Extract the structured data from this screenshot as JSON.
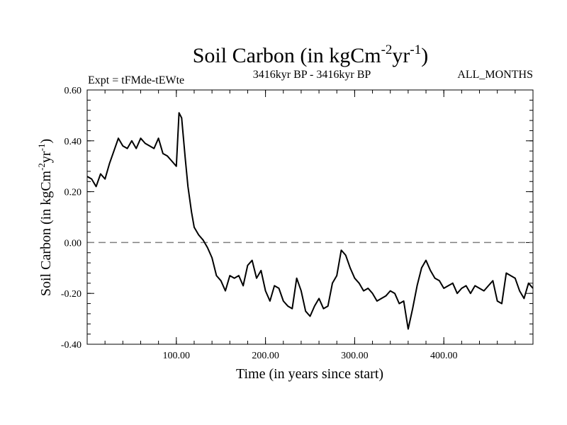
{
  "chart_data": {
    "type": "line",
    "title": "Soil Carbon (in kgCm",
    "title_sup1": "-2",
    "title_mid": "yr",
    "title_sup2": "-1",
    "title_end": ")",
    "subtitle_left": "Expt = tFMde-tEWte",
    "subtitle_center": "3416kyr BP - 3416kyr BP",
    "subtitle_right": "ALL_MONTHS",
    "xlabel": "Time (in years since start)",
    "ylabel": "Soil Carbon (in kgCm",
    "ylabel_sup1": "-2",
    "ylabel_mid": "yr",
    "ylabel_sup2": "-1",
    "ylabel_end": ")",
    "xlim": [
      0,
      500
    ],
    "ylim": [
      -0.4,
      0.6
    ],
    "xticks": [
      {
        "value": 100,
        "label": "100.00"
      },
      {
        "value": 200,
        "label": "200.00"
      },
      {
        "value": 300,
        "label": "300.00"
      },
      {
        "value": 400,
        "label": "400.00"
      }
    ],
    "yticks": [
      {
        "value": 0.6,
        "label": "0.60"
      },
      {
        "value": 0.4,
        "label": "0.40"
      },
      {
        "value": 0.2,
        "label": "0.20"
      },
      {
        "value": 0.0,
        "label": "0.00"
      },
      {
        "value": -0.2,
        "label": "-0.20"
      },
      {
        "value": -0.4,
        "label": "-0.40"
      }
    ],
    "reference_line": {
      "y": 0.0,
      "style": "dashed",
      "color": "#808080"
    },
    "series": [
      {
        "name": "Soil Carbon",
        "color": "#000000",
        "x": [
          0,
          5,
          10,
          15,
          20,
          25,
          30,
          35,
          40,
          45,
          50,
          55,
          60,
          65,
          70,
          75,
          80,
          85,
          90,
          95,
          100,
          103,
          106,
          110,
          113,
          117,
          120,
          125,
          130,
          135,
          140,
          145,
          150,
          155,
          160,
          165,
          170,
          175,
          180,
          185,
          190,
          195,
          200,
          205,
          210,
          215,
          220,
          225,
          230,
          235,
          240,
          245,
          250,
          255,
          260,
          265,
          270,
          275,
          280,
          285,
          290,
          295,
          300,
          305,
          310,
          315,
          320,
          325,
          330,
          335,
          340,
          345,
          350,
          355,
          360,
          365,
          370,
          375,
          380,
          385,
          390,
          395,
          400,
          405,
          410,
          415,
          420,
          425,
          430,
          435,
          440,
          445,
          450,
          455,
          460,
          465,
          470,
          475,
          480,
          485,
          490,
          495,
          500
        ],
        "values": [
          0.26,
          0.25,
          0.22,
          0.27,
          0.25,
          0.31,
          0.36,
          0.41,
          0.38,
          0.37,
          0.4,
          0.37,
          0.41,
          0.39,
          0.38,
          0.37,
          0.41,
          0.35,
          0.34,
          0.32,
          0.3,
          0.51,
          0.49,
          0.33,
          0.22,
          0.12,
          0.06,
          0.03,
          0.01,
          -0.02,
          -0.06,
          -0.13,
          -0.15,
          -0.19,
          -0.13,
          -0.14,
          -0.13,
          -0.17,
          -0.09,
          -0.07,
          -0.14,
          -0.11,
          -0.19,
          -0.23,
          -0.17,
          -0.18,
          -0.23,
          -0.25,
          -0.26,
          -0.14,
          -0.19,
          -0.27,
          -0.29,
          -0.25,
          -0.22,
          -0.26,
          -0.25,
          -0.16,
          -0.13,
          -0.03,
          -0.05,
          -0.1,
          -0.14,
          -0.16,
          -0.19,
          -0.18,
          -0.2,
          -0.23,
          -0.22,
          -0.21,
          -0.19,
          -0.2,
          -0.24,
          -0.23,
          -0.34,
          -0.26,
          -0.17,
          -0.1,
          -0.07,
          -0.11,
          -0.14,
          -0.15,
          -0.18,
          -0.17,
          -0.16,
          -0.2,
          -0.18,
          -0.17,
          -0.2,
          -0.17,
          -0.18,
          -0.19,
          -0.17,
          -0.15,
          -0.23,
          -0.24,
          -0.12,
          -0.13,
          -0.14,
          -0.19,
          -0.22,
          -0.16,
          -0.18
        ]
      }
    ]
  }
}
